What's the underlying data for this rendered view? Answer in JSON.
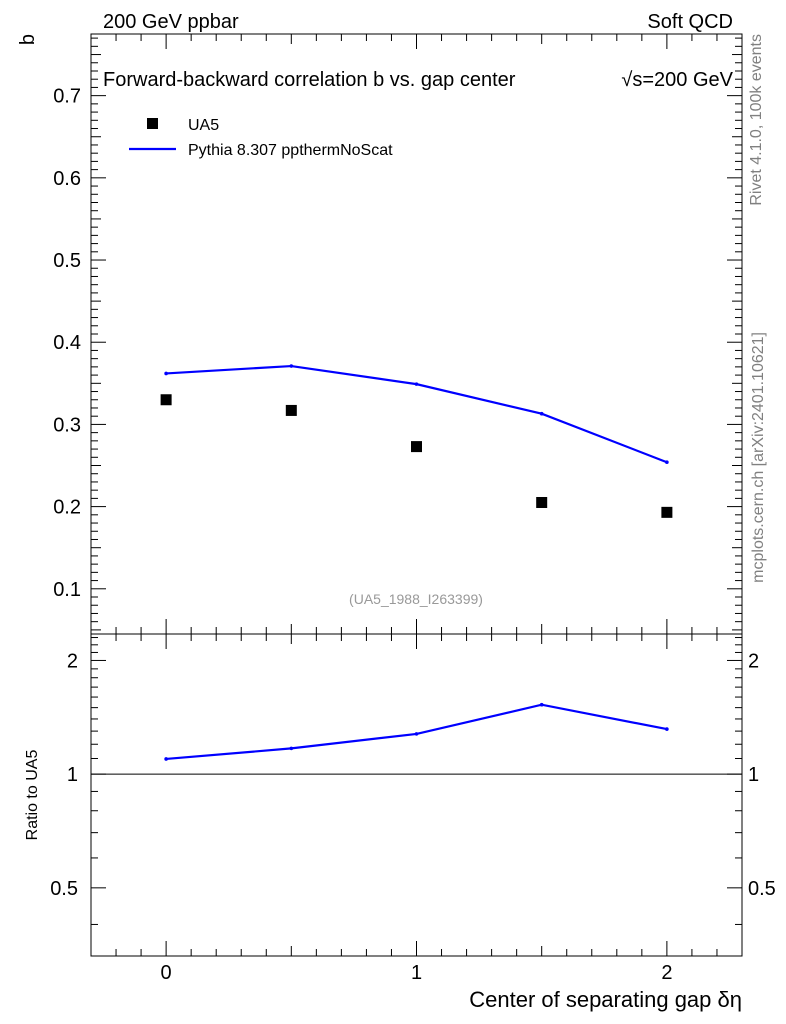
{
  "header": {
    "left": "200 GeV ppbar",
    "right": "Soft QCD"
  },
  "side_text": {
    "rivet": "Rivet 4.1.0,  100k events",
    "mcplots": "mcplots.cern.ch [arXiv:2401.10621]"
  },
  "chart_data": [
    {
      "type": "scatter",
      "title": "Forward-backward correlation b  vs. gap center",
      "title_energy": "√s=200 GeV",
      "ylabel": "b",
      "xlabel": "Center of separating gap δη",
      "xlim": [
        -0.3,
        2.3
      ],
      "ylim": [
        0.045,
        0.775
      ],
      "yticks": [
        0.1,
        0.2,
        0.3,
        0.4,
        0.5,
        0.6,
        0.7
      ],
      "ytick_labels": [
        "0.1",
        "0.2",
        "0.3",
        "0.4",
        "0.5",
        "0.6",
        "0.7"
      ],
      "watermark": "(UA5_1988_I263399)",
      "legend": {
        "placement": "top-left",
        "entries": [
          "UA5",
          "Pythia 8.307 ppthermNoScat"
        ]
      },
      "series": [
        {
          "name": "UA5",
          "kind": "markers",
          "color": "#000000",
          "x": [
            0,
            0.5,
            1,
            1.5,
            2
          ],
          "y": [
            0.33,
            0.317,
            0.273,
            0.205,
            0.193
          ]
        },
        {
          "name": "Pythia 8.307 ppthermNoScat",
          "kind": "line",
          "color": "#0000ff",
          "x": [
            0,
            0.5,
            1,
            1.5,
            2
          ],
          "y": [
            0.362,
            0.371,
            0.349,
            0.313,
            0.254
          ]
        }
      ]
    },
    {
      "type": "line",
      "ylabel": "Ratio to UA5",
      "xlim": [
        -0.3,
        2.3
      ],
      "ylim": [
        0.33,
        2.35
      ],
      "xticks": [
        0,
        1,
        2
      ],
      "xtick_labels": [
        "0",
        "1",
        "2"
      ],
      "yticks": [
        0.5,
        1,
        2
      ],
      "ytick_labels": [
        "0.5",
        "1",
        "2"
      ],
      "reference_line": 1,
      "series": [
        {
          "name": "Pythia 8.307 ppthermNoScat / UA5",
          "color": "#0000ff",
          "x": [
            0,
            0.5,
            1,
            1.5,
            2
          ],
          "y": [
            1.097,
            1.17,
            1.278,
            1.527,
            1.316
          ]
        }
      ]
    }
  ]
}
